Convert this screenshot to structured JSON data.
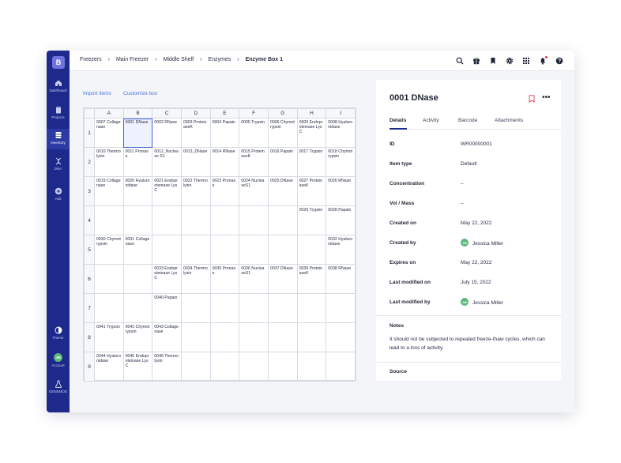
{
  "sidebar": {
    "logo": "B",
    "items": [
      {
        "label": "Dashboard",
        "icon": "home-icon"
      },
      {
        "label": "Projects",
        "icon": "clipboard-icon"
      },
      {
        "label": "Inventory",
        "icon": "inventory-icon"
      },
      {
        "label": "DNA",
        "icon": "dna-icon"
      },
      {
        "label": "Add",
        "icon": "plus-icon"
      }
    ],
    "bottom": [
      {
        "label": "Theme",
        "icon": "theme-icon"
      },
      {
        "label": "Account",
        "avatar": "JM"
      },
      {
        "label": "GENEMOD",
        "icon": "flask-icon"
      }
    ],
    "active": "Inventory"
  },
  "breadcrumb": [
    "Freezers",
    "Middle Shelf",
    "Enzymes",
    "Enzyme Box 1"
  ],
  "breadcrumb_main_freezer": "Main Freezer",
  "actions": {
    "import": "Import items",
    "customize": "Customize box"
  },
  "grid": {
    "columns": [
      "A",
      "B",
      "C",
      "D",
      "E",
      "F",
      "G",
      "H",
      "I"
    ],
    "rows": [
      {
        "label": "1",
        "cells": [
          "0007 Collagenase",
          "0001 DNase",
          "0002 RNase",
          "0003 ProteinaseK",
          "0004 Papain",
          "0005 Trypsin",
          "0006 Chymotrypsin",
          "0009 Endoproteinase LysC",
          "0008 Hyaluronidase"
        ]
      },
      {
        "label": "2",
        "cells": [
          "0010 Thermolysin",
          "0011 Pronase",
          "0012_Nuclease S1",
          "0013_DNase",
          "0014 RNase",
          "0015 ProteinaseK",
          "0016 Papain",
          "0017 Trypsin",
          "0018 Chymotrypsin"
        ]
      },
      {
        "label": "3",
        "cells": [
          "0019 Collagenase",
          "0020 Hyaluronidase",
          "0021 Endoproteinase LysC",
          "0022 Thermolysin",
          "0023 Pronase",
          "0024 NucleaseS1",
          "0025 DNase",
          "0027 ProteinaseK",
          "0026 RNase"
        ]
      },
      {
        "label": "4",
        "cells": [
          "",
          "",
          "",
          "",
          "",
          "",
          "",
          "0029 Trypsin",
          "0028 Papain"
        ]
      },
      {
        "label": "5",
        "cells": [
          "0030 Chymotrypsin",
          "0031 Collagenase",
          "",
          "",
          "",
          "",
          "",
          "",
          "0032 Hyaluronidase"
        ]
      },
      {
        "label": "6",
        "cells": [
          "",
          "",
          "0033 Endoproteinase LysC",
          "0034 Thermolysin",
          "0035 Pronase",
          "0036 NucleaseS1",
          "0037 DNase",
          "0039 ProteinaseK",
          "0038 RNase"
        ]
      },
      {
        "label": "7",
        "cells": [
          "",
          "",
          "0040 Papain",
          "",
          "",
          "",
          "",
          "",
          ""
        ]
      },
      {
        "label": "8",
        "cells": [
          "0041 Trypsin",
          "0042 Chymotrypsin",
          "0043 Collagenase",
          "",
          "",
          "",
          "",
          "",
          ""
        ]
      },
      {
        "label": "9",
        "cells": [
          "0044 Hyaluronidase",
          "0045 Endoproteinase LysC",
          "0046 Thermolysin",
          "",
          "",
          "",
          "",
          "",
          ""
        ]
      }
    ],
    "selected": "B1"
  },
  "panel": {
    "title": "0001 DNase",
    "tabs": [
      "Details",
      "Activity",
      "Barcode",
      "Attachments"
    ],
    "active_tab": "Details",
    "properties": [
      {
        "key": "ID",
        "value": "WR00000001"
      },
      {
        "key": "Item type",
        "value": "Default"
      },
      {
        "key": "Concentration",
        "value": "–"
      },
      {
        "key": "Vol / Mass",
        "value": "–"
      },
      {
        "key": "Created on",
        "value": "May 22, 2022"
      },
      {
        "key": "Created by",
        "value": "Jessica Miller",
        "avatar": "JM"
      },
      {
        "key": "Expires on",
        "value": "May 22, 2022"
      },
      {
        "key": "Last modified on",
        "value": "July 15, 2022"
      },
      {
        "key": "Last modified by",
        "value": "Jessica Miller",
        "avatar": "JM"
      }
    ],
    "notes_title": "Notes",
    "notes": "It should not be subjected to repeated freeze-thaw cycles, which can lead to a loss of activity.",
    "source_title": "Source"
  },
  "colors": {
    "sidebar": "#1d2a8c",
    "accent": "#4a6ee0",
    "avatar": "#5cb87c",
    "bookmark": "#e0394b"
  }
}
